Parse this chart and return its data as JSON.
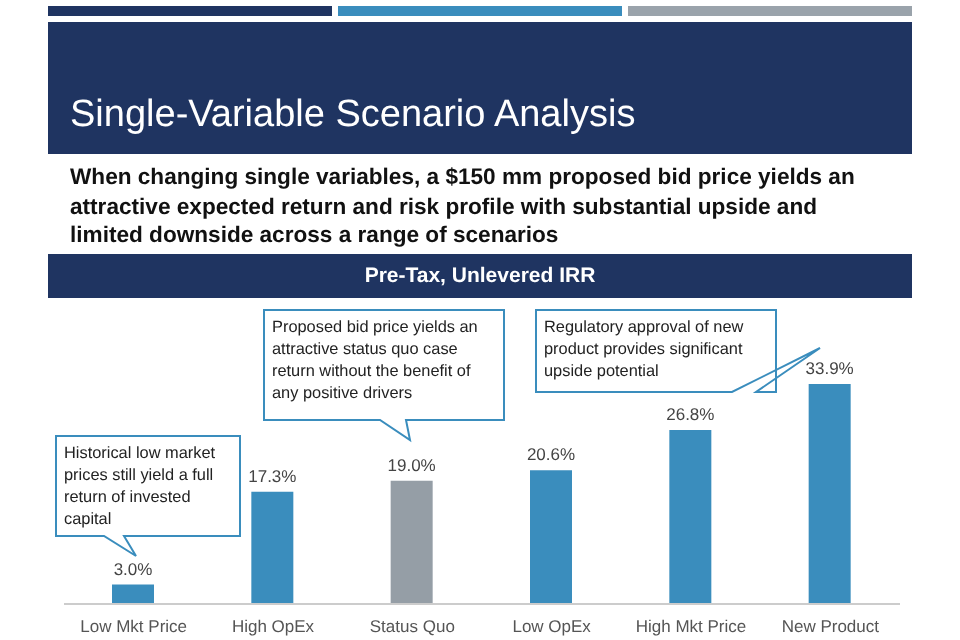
{
  "chart_data": {
    "type": "bar",
    "title": "Single-Variable Scenario Analysis",
    "subtitle": "When changing single variables, a $150 mm proposed bid price yields an attractive expected return and risk profile with substantial upside and limited downside across a range of scenarios",
    "categories": [
      "Low Mkt Price",
      "High OpEx",
      "Status Quo",
      "Low OpEx",
      "High Mkt Price",
      "New Product"
    ],
    "values": [
      3.0,
      17.3,
      19.0,
      20.6,
      26.8,
      33.9
    ],
    "colors": [
      "#3a8dbd",
      "#3a8dbd",
      "#959ea6",
      "#3a8dbd",
      "#3a8dbd",
      "#3a8dbd"
    ],
    "value_labels": [
      "3.0%",
      "17.3%",
      "19.0%",
      "20.6%",
      "26.8%",
      "33.9%"
    ],
    "annotations": [
      "Pre-Tax, Unlevered IRR",
      "Historical low market prices still yield a full return of invested capital",
      "Proposed bid price yields an attractive status quo case return without the benefit of any positive drivers",
      "Regulatory approval of new product provides significant upside potential"
    ]
  }
}
